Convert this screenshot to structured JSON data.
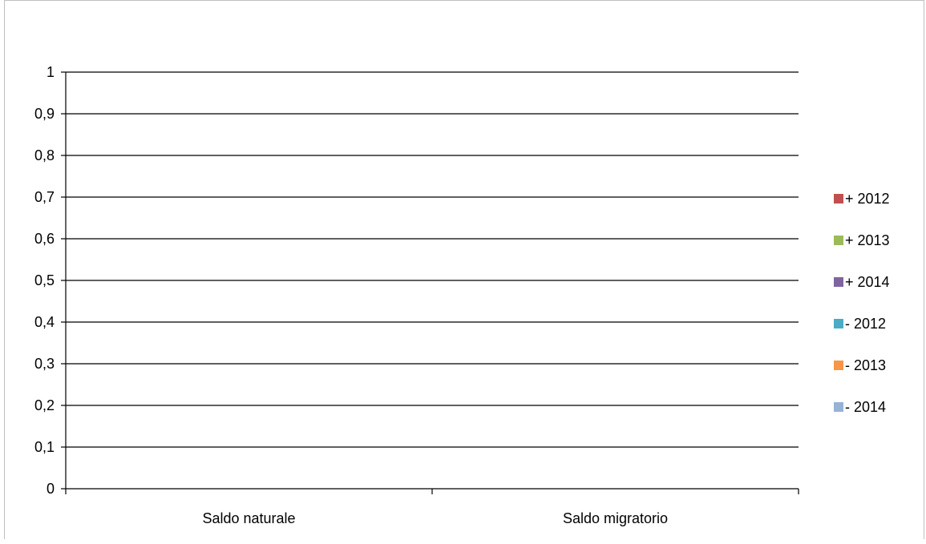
{
  "chart_data": {
    "type": "bar",
    "title": "",
    "xlabel": "",
    "ylabel": "",
    "categories": [
      "Saldo naturale",
      "Saldo migratorio"
    ],
    "ylim": [
      0,
      1
    ],
    "yticks": [
      "0",
      "0,1",
      "0,2",
      "0,3",
      "0,4",
      "0,5",
      "0,6",
      "0,7",
      "0,8",
      "0,9",
      "1"
    ],
    "grid": true,
    "legend_position": "right",
    "series": [
      {
        "name": "+ 2012",
        "color": "#c0504d",
        "values": [
          null,
          null
        ]
      },
      {
        "name": "+ 2013",
        "color": "#9bbb59",
        "values": [
          null,
          null
        ]
      },
      {
        "name": "+ 2014",
        "color": "#8064a2",
        "values": [
          null,
          null
        ]
      },
      {
        "name": "- 2012",
        "color": "#4bacc6",
        "values": [
          null,
          null
        ]
      },
      {
        "name": "- 2013",
        "color": "#f79646",
        "values": [
          null,
          null
        ]
      },
      {
        "name": "- 2014",
        "color": "#95b3d7",
        "values": [
          null,
          null
        ]
      }
    ]
  }
}
